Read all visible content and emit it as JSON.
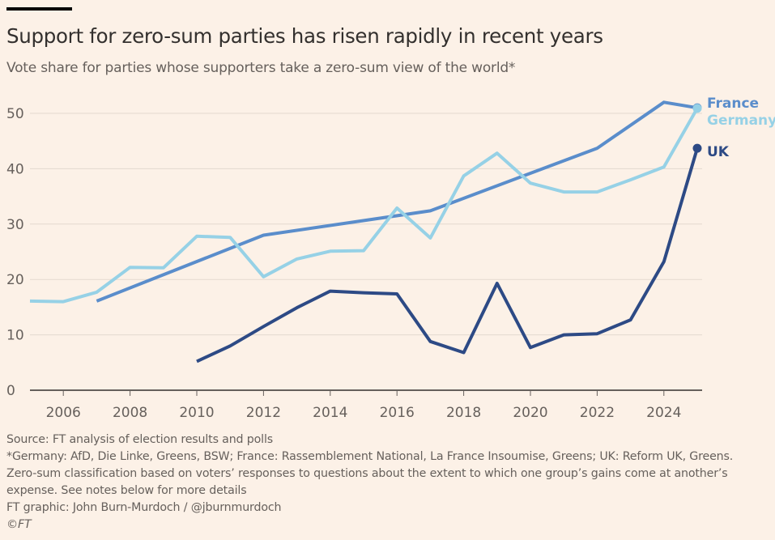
{
  "header": {
    "title": "Support for zero-sum parties has risen rapidly in recent years",
    "subtitle": "Vote share for parties whose supporters take a zero-sum view of the world*"
  },
  "footer": {
    "source": "Source: FT analysis of election results and polls",
    "note1": "*Germany: AfD, Die Linke, Greens, BSW; France: Rassemblement National, La France Insoumise, Greens; UK: Reform UK, Greens.",
    "note2": "Zero-sum classification based on voters’ responses to questions about the extent to which one group’s gains come at another’s",
    "note3": "expense. See notes below for more details",
    "credit": "FT graphic: John Burn-Murdoch / @jburnmurdoch",
    "copyright": "©FT"
  },
  "chart_data": {
    "type": "line",
    "title": "Support for zero-sum parties has risen rapidly in recent years",
    "subtitle": "Vote share for parties whose supporters take a zero-sum view of the world*",
    "xlabel": "",
    "ylabel": "",
    "xlim": [
      2005,
      2025.2
    ],
    "ylim": [
      0,
      52
    ],
    "x_ticks": [
      2006,
      2008,
      2010,
      2012,
      2014,
      2016,
      2018,
      2020,
      2022,
      2024
    ],
    "y_ticks": [
      0,
      10,
      20,
      30,
      40,
      50
    ],
    "grid": "horizontal",
    "legend": "direct labels at line ends (right)",
    "series": [
      {
        "name": "France",
        "color": "#5a8dcb",
        "points": [
          [
            2007,
            16.1
          ],
          [
            2012,
            28.0
          ],
          [
            2017,
            32.4
          ],
          [
            2022,
            43.7
          ],
          [
            2024,
            52.0
          ],
          [
            2025,
            51.0
          ]
        ]
      },
      {
        "name": "Germany",
        "color": "#96d1e6",
        "points": [
          [
            2005,
            16.1
          ],
          [
            2006,
            16.0
          ],
          [
            2007,
            17.7
          ],
          [
            2008,
            22.2
          ],
          [
            2009,
            22.1
          ],
          [
            2010,
            27.8
          ],
          [
            2011,
            27.6
          ],
          [
            2012,
            20.5
          ],
          [
            2013,
            23.7
          ],
          [
            2014,
            25.1
          ],
          [
            2015,
            25.2
          ],
          [
            2016,
            32.9
          ],
          [
            2017,
            27.5
          ],
          [
            2018,
            38.7
          ],
          [
            2019,
            42.8
          ],
          [
            2020,
            37.4
          ],
          [
            2021,
            35.8
          ],
          [
            2022,
            35.8
          ],
          [
            2023,
            38.0
          ],
          [
            2024,
            40.3
          ],
          [
            2025,
            50.9
          ]
        ]
      },
      {
        "name": "UK",
        "color": "#2d4a85",
        "points": [
          [
            2010,
            5.2
          ],
          [
            2011,
            8.0
          ],
          [
            2012,
            11.5
          ],
          [
            2013,
            14.9
          ],
          [
            2014,
            17.9
          ],
          [
            2015,
            17.6
          ],
          [
            2016,
            17.4
          ],
          [
            2017,
            8.8
          ],
          [
            2018,
            6.8
          ],
          [
            2019,
            19.3
          ],
          [
            2020,
            7.7
          ],
          [
            2021,
            10.0
          ],
          [
            2022,
            10.2
          ],
          [
            2023,
            12.7
          ],
          [
            2024,
            23.2
          ],
          [
            2025,
            43.7
          ]
        ]
      }
    ]
  }
}
